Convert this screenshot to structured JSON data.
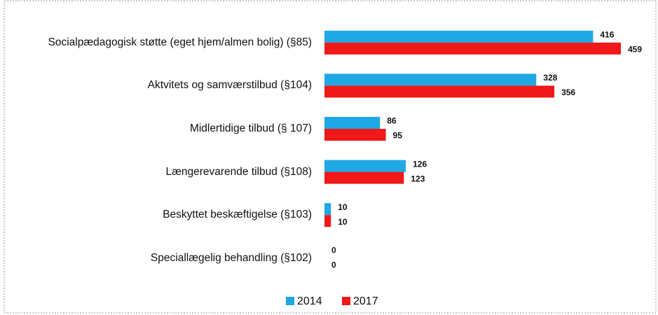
{
  "chart_data": {
    "type": "hbar",
    "categories": [
      "Socialpædagogisk støtte (eget hjem/almen bolig) (§85)",
      "Aktvitets og samværstilbud (§104)",
      "Midlertidige tilbud (§ 107)",
      "Længerevarende tilbud (§108)",
      "Beskyttet beskæftigelse (§103)",
      "Speciallægelig behandling (§102)"
    ],
    "series": [
      {
        "name": "2014",
        "color": "#1ea8e4",
        "values": [
          416,
          328,
          86,
          126,
          10,
          0
        ]
      },
      {
        "name": "2017",
        "color": "#f01818",
        "values": [
          459,
          356,
          95,
          123,
          10,
          0
        ]
      }
    ],
    "legend": "bottom"
  }
}
